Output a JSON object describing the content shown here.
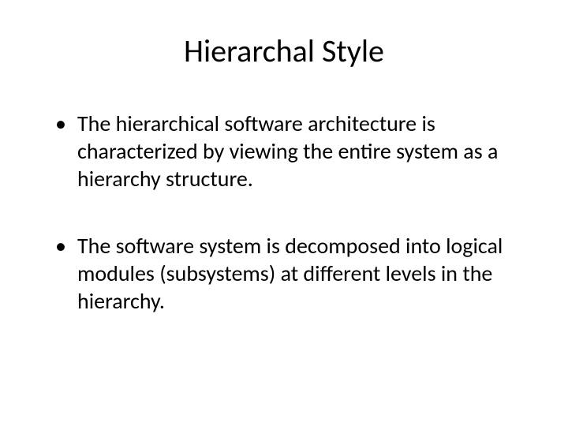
{
  "slide": {
    "title": "Hierarchal Style",
    "bullets": [
      "The hierarchical software architecture is characterized by viewing the entire system as a hierarchy structure.",
      "The software system is decomposed into logical modules (subsystems) at different levels in the hierarchy."
    ]
  },
  "style": {
    "background_color": "#ffffff",
    "text_color": "#000000",
    "title_fontsize": 40,
    "body_fontsize": 28,
    "font_family": "Calibri"
  }
}
